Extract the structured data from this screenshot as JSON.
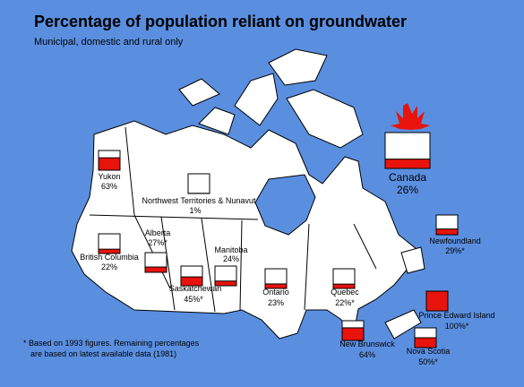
{
  "header": {
    "title": "Percentage of population reliant on groundwater",
    "subtitle": "Municipal, domestic and rural only"
  },
  "regions": [
    {
      "name": "Yukon",
      "value": 63,
      "label": "63%"
    },
    {
      "name": "Northwest Territories & Nunavut",
      "value": 1,
      "label": "1%"
    },
    {
      "name": "British Columbia",
      "value": 22,
      "label": "22%"
    },
    {
      "name": "Alberta",
      "value": 27,
      "label": "27%*"
    },
    {
      "name": "Saskatchewan",
      "value": 45,
      "label": "45%*"
    },
    {
      "name": "Manitoba",
      "value": 24,
      "label": "24%"
    },
    {
      "name": "Ontario",
      "value": 23,
      "label": "23%"
    },
    {
      "name": "Quebec",
      "value": 22,
      "label": "22%*"
    },
    {
      "name": "Newfoundland",
      "value": 29,
      "label": "29%*"
    },
    {
      "name": "Prince Edward Island",
      "value": 100,
      "label": "100%*"
    },
    {
      "name": "New Brunswick",
      "value": 64,
      "label": "64%"
    },
    {
      "name": "Nova Scotia",
      "value": 50,
      "label": "50%*"
    }
  ],
  "national": {
    "name": "Canada",
    "value": 26,
    "label": "26%"
  },
  "footnote": [
    "* Based on 1993 figures. Remaining percentages",
    "are based on latest available data (1981)"
  ]
}
